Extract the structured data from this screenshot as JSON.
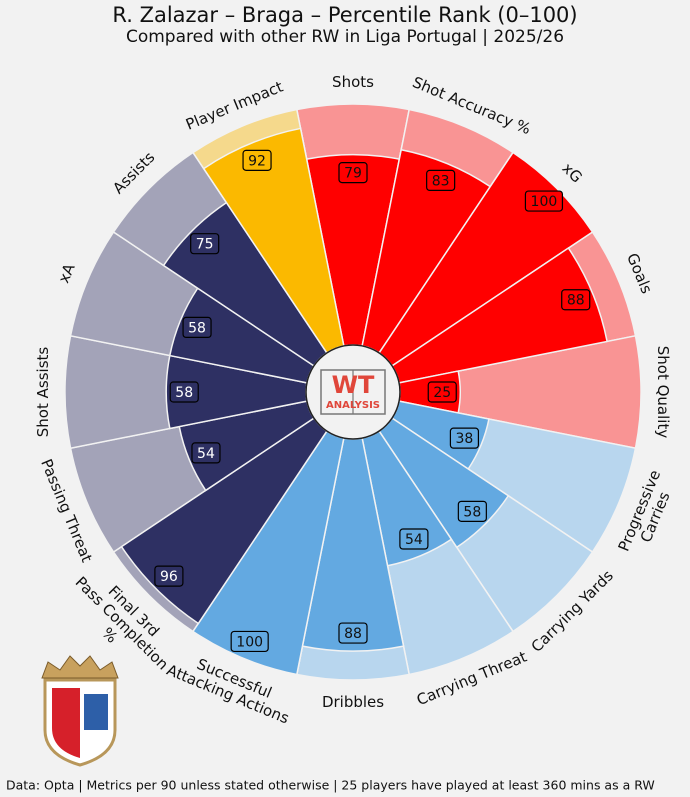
{
  "chart_data": {
    "type": "pizza",
    "title": "R. Zalazar – Braga – Percentile Rank (0–100)",
    "subtitle": "Compared with other RW in Liga Portugal | 2025/26",
    "footer": "Data: Opta | Metrics per 90 unless stated otherwise | 25 players have played at least 360 mins as a RW",
    "logo_text": [
      "WT",
      "ANALYSIS"
    ],
    "ylim": [
      0,
      100
    ],
    "categories": [
      "Shots",
      "Shot Accuracy %",
      "xG",
      "Goals",
      "Shot Quality",
      "Progressive\nCarries",
      "Carrying Yards",
      "Carrying Threat",
      "Dribbles",
      "Successful\nAttacking Actions",
      "Final 3rd\nPass Completion\n%",
      "Passing Threat",
      "Shot Assists",
      "xA",
      "Assists",
      "Player Impact"
    ],
    "values": [
      79,
      83,
      100,
      88,
      25,
      38,
      58,
      54,
      88,
      100,
      96,
      54,
      58,
      58,
      75,
      92
    ],
    "colors": [
      "#ff0000",
      "#ff0000",
      "#ff0000",
      "#ff0000",
      "#ff0000",
      "#63a9e1",
      "#63a9e1",
      "#63a9e1",
      "#63a9e1",
      "#63a9e1",
      "#2e3063",
      "#2e3063",
      "#2e3063",
      "#2e3063",
      "#2e3063",
      "#fbb900"
    ],
    "background_colors": [
      "#f99494",
      "#f99494",
      "#f99494",
      "#f99494",
      "#f99494",
      "#b8d6ee",
      "#b8d6ee",
      "#b8d6ee",
      "#b8d6ee",
      "#b8d6ee",
      "#a3a3b8",
      "#a3a3b8",
      "#a3a3b8",
      "#a3a3b8",
      "#a3a3b8",
      "#f5d98c"
    ]
  }
}
